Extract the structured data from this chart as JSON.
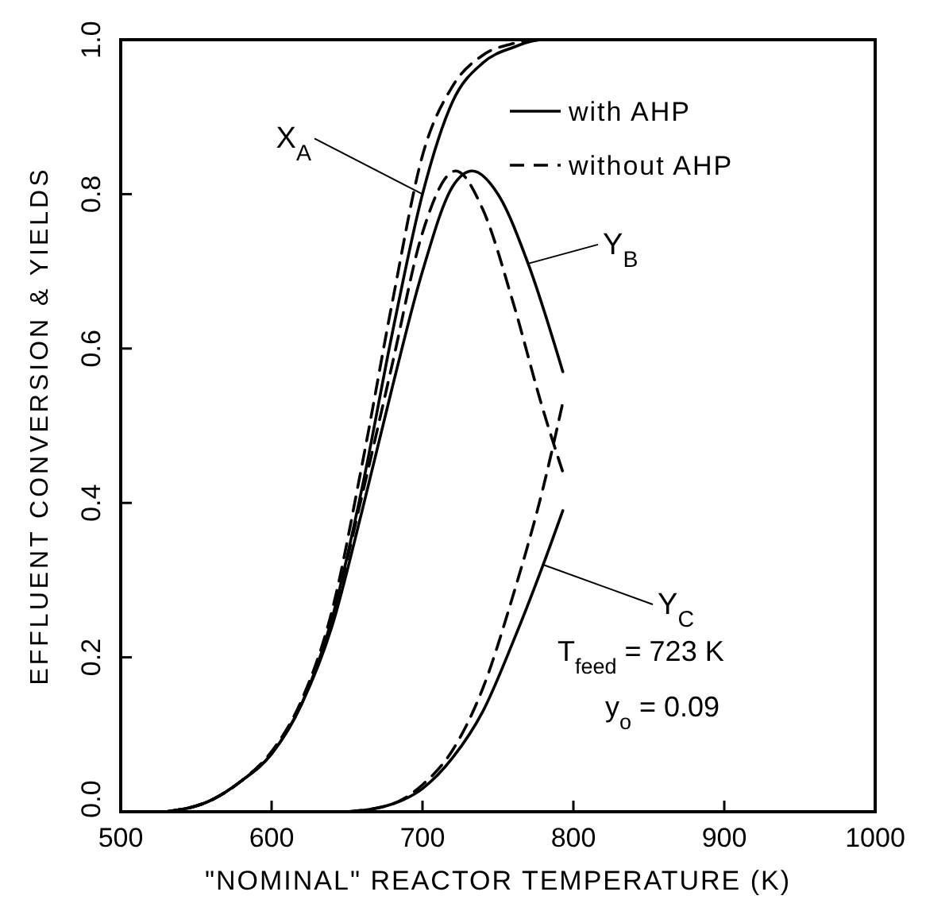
{
  "chart_data": {
    "type": "line",
    "xlabel": "\"NOMINAL\" REACTOR TEMPERATURE (K)",
    "ylabel": "EFFLUENT CONVERSION & YIELDS",
    "xlim": [
      500,
      1000
    ],
    "xticks": [
      500,
      600,
      700,
      800,
      900,
      1000
    ],
    "ylim": [
      0,
      1
    ],
    "yticks": [
      {
        "value": 0,
        "label": "0.0"
      },
      0.2,
      0.4,
      0.6,
      0.8,
      {
        "value": 1,
        "label": "1.0"
      }
    ],
    "grid": false,
    "legend": "top right",
    "series": [
      {
        "name": "with AHP",
        "color": "#000000",
        "line_style": "solid",
        "x": [
          530,
          560,
          580,
          600,
          620,
          640,
          660,
          680,
          700,
          720,
          740,
          760,
          780,
          800
        ],
        "values": [
          0,
          0.015,
          0.04,
          0.075,
          0.14,
          0.25,
          0.42,
          0.62,
          0.8,
          0.92,
          0.97,
          0.99,
          1,
          1
        ]
      },
      {
        "name": "without AHP",
        "color": "#000000",
        "line_style": "dashed",
        "x": [
          530,
          560,
          580,
          600,
          620,
          640,
          660,
          680,
          700,
          720,
          740,
          760,
          780
        ],
        "values": [
          0,
          0.015,
          0.04,
          0.078,
          0.145,
          0.26,
          0.45,
          0.66,
          0.85,
          0.94,
          0.98,
          0.995,
          1
        ]
      },
      {
        "color": "#000000",
        "line_style": "solid",
        "x": [
          530,
          560,
          580,
          600,
          620,
          640,
          660,
          680,
          700,
          720,
          733,
          750,
          770,
          793
        ],
        "values": [
          0,
          0.015,
          0.04,
          0.075,
          0.14,
          0.24,
          0.39,
          0.55,
          0.7,
          0.81,
          0.83,
          0.8,
          0.71,
          0.57
        ]
      },
      {
        "color": "#000000",
        "line_style": "dashed",
        "x": [
          530,
          560,
          580,
          600,
          620,
          640,
          660,
          680,
          700,
          722,
          740,
          760,
          780,
          793
        ],
        "values": [
          0,
          0.015,
          0.04,
          0.077,
          0.143,
          0.25,
          0.41,
          0.58,
          0.75,
          0.83,
          0.78,
          0.66,
          0.52,
          0.44
        ]
      },
      {
        "color": "#000000",
        "line_style": "solid",
        "x": [
          650,
          680,
          700,
          720,
          740,
          760,
          780,
          793
        ],
        "values": [
          0,
          0.01,
          0.03,
          0.07,
          0.13,
          0.22,
          0.32,
          0.39
        ]
      },
      {
        "color": "#000000",
        "line_style": "dashed",
        "x": [
          650,
          680,
          700,
          720,
          740,
          760,
          780,
          793
        ],
        "values": [
          0,
          0.01,
          0.035,
          0.08,
          0.16,
          0.28,
          0.42,
          0.53
        ]
      }
    ],
    "annotations": [
      {
        "text": "X$_{A}$",
        "x": 700,
        "y": 0.8
      },
      {
        "text": "Y$_{B}$",
        "x": 770,
        "y": 0.71
      },
      {
        "text": "Y$_{C}$",
        "x": 780,
        "y": 0.32
      },
      "T$_{feed}$ = 723 K",
      "y$_{o}$ = 0.09"
    ]
  }
}
